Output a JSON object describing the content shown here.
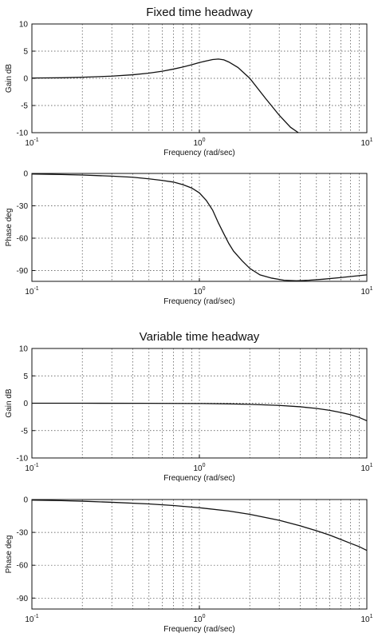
{
  "chart_data": [
    {
      "type": "line",
      "title": "Fixed time headway",
      "xlabel": "Frequency (rad/sec)",
      "ylabel": "Gain dB",
      "xscale": "log",
      "xlim": [
        0.1,
        10
      ],
      "ylim": [
        -10,
        10
      ],
      "x_ticks": [
        {
          "base": "10",
          "exp": "-1"
        },
        {
          "base": "10",
          "exp": "0"
        },
        {
          "base": "10",
          "exp": "1"
        }
      ],
      "y_ticks": [
        "10",
        "5",
        "0",
        "-5",
        "-10"
      ],
      "grid": true,
      "series": [
        {
          "x": [
            0.1,
            0.15,
            0.2,
            0.3,
            0.4,
            0.5,
            0.6,
            0.7,
            0.8,
            0.9,
            1.0,
            1.1,
            1.2,
            1.3,
            1.4,
            1.5,
            1.7,
            2.0,
            2.5,
            3.0,
            3.5,
            3.9
          ],
          "y": [
            0.05,
            0.1,
            0.2,
            0.4,
            0.65,
            0.95,
            1.3,
            1.7,
            2.1,
            2.5,
            2.9,
            3.2,
            3.45,
            3.55,
            3.4,
            3.0,
            2.0,
            0.0,
            -3.8,
            -6.8,
            -9.0,
            -10.0
          ]
        }
      ]
    },
    {
      "type": "line",
      "title": "",
      "xlabel": "Frequency (rad/sec)",
      "ylabel": "Phase deg",
      "xscale": "log",
      "xlim": [
        0.1,
        10
      ],
      "ylim": [
        -100,
        0
      ],
      "x_ticks": [
        {
          "base": "10",
          "exp": "-1"
        },
        {
          "base": "10",
          "exp": "0"
        },
        {
          "base": "10",
          "exp": "1"
        }
      ],
      "y_ticks": [
        "0",
        "-30",
        "-60",
        "-90"
      ],
      "grid": true,
      "series": [
        {
          "x": [
            0.1,
            0.15,
            0.2,
            0.3,
            0.4,
            0.5,
            0.6,
            0.7,
            0.8,
            0.9,
            1.0,
            1.1,
            1.2,
            1.3,
            1.4,
            1.5,
            1.6,
            1.8,
            2.0,
            2.3,
            2.7,
            3.2,
            3.8,
            4.5,
            5.5,
            7.0,
            10.0
          ],
          "y": [
            -0.5,
            -1,
            -1.5,
            -2.5,
            -3.5,
            -5,
            -6.5,
            -8,
            -10.5,
            -13.5,
            -18,
            -25,
            -34,
            -46,
            -56,
            -65,
            -72,
            -81,
            -88,
            -94,
            -97,
            -99,
            -99.5,
            -99,
            -98,
            -96.5,
            -94
          ]
        }
      ]
    },
    {
      "type": "line",
      "title": "Variable time headway",
      "xlabel": "Frequency (rad/sec)",
      "ylabel": "Gain dB",
      "xscale": "log",
      "xlim": [
        0.1,
        10
      ],
      "ylim": [
        -10,
        10
      ],
      "x_ticks": [
        {
          "base": "10",
          "exp": "-1"
        },
        {
          "base": "10",
          "exp": "0"
        },
        {
          "base": "10",
          "exp": "1"
        }
      ],
      "y_ticks": [
        "10",
        "5",
        "0",
        "-5",
        "-10"
      ],
      "grid": true,
      "series": [
        {
          "x": [
            0.1,
            0.2,
            0.5,
            1.0,
            1.5,
            2.0,
            3.0,
            4.0,
            5.0,
            6.0,
            7.0,
            8.0,
            9.0,
            10.0
          ],
          "y": [
            0.0,
            0.0,
            -0.02,
            -0.05,
            -0.12,
            -0.2,
            -0.4,
            -0.65,
            -0.95,
            -1.3,
            -1.7,
            -2.1,
            -2.6,
            -3.2
          ]
        }
      ]
    },
    {
      "type": "line",
      "title": "",
      "xlabel": "Frequency (rad/sec)",
      "ylabel": "Phase deg",
      "xscale": "log",
      "xlim": [
        0.1,
        10
      ],
      "ylim": [
        -100,
        0
      ],
      "x_ticks": [
        {
          "base": "10",
          "exp": "-1"
        },
        {
          "base": "10",
          "exp": "0"
        },
        {
          "base": "10",
          "exp": "1"
        }
      ],
      "y_ticks": [
        "0",
        "-30",
        "-60",
        "-90"
      ],
      "grid": true,
      "series": [
        {
          "x": [
            0.1,
            0.15,
            0.2,
            0.3,
            0.5,
            0.7,
            1.0,
            1.5,
            2.0,
            3.0,
            4.0,
            5.0,
            6.0,
            7.0,
            8.0,
            9.0,
            10.0
          ],
          "y": [
            -0.5,
            -1,
            -1.5,
            -2.5,
            -4,
            -5.5,
            -7.5,
            -10.5,
            -13.5,
            -19,
            -24,
            -28.5,
            -32.5,
            -36.5,
            -40,
            -43,
            -46.5
          ]
        }
      ]
    }
  ]
}
